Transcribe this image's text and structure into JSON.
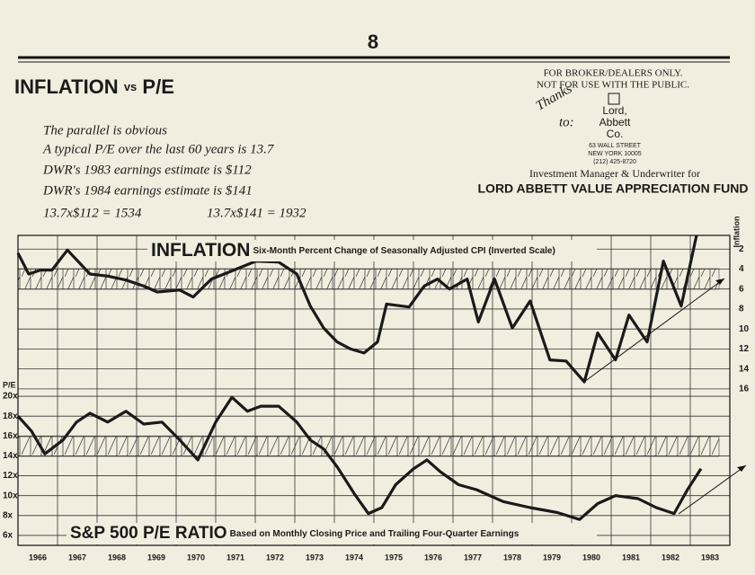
{
  "page_number": "8",
  "heading": {
    "main": "INFLATION",
    "vs": "vs",
    "tail": "P/E"
  },
  "disclaimer": [
    "FOR BROKER/DEALERS ONLY.",
    "NOT FOR USE WITH THE PUBLIC."
  ],
  "thanks": [
    "Thanks",
    "to:"
  ],
  "firm": {
    "name": [
      "Lord,",
      "Abbett",
      "Co."
    ],
    "address": [
      "63 WALL STREET",
      "NEW YORK 10005",
      "(212) 425-8720"
    ],
    "role": "Investment Manager & Underwriter for",
    "fund": "LORD ABBETT VALUE APPRECIATION FUND"
  },
  "notes": [
    "The parallel is obvious",
    "A typical P/E over the last 60 years is 13.7",
    "DWR's 1983 earnings estimate is $112",
    "DWR's 1984 earnings estimate is $141",
    "13.7x$112 = 1534",
    "13.7x$141 = 1932"
  ],
  "chart_data": [
    {
      "type": "line",
      "title": "INFLATION",
      "subtitle": "Six-Month Percent Change of Seasonally Adjusted CPI (Inverted Scale)",
      "y_axis_label": "Inflation",
      "y_axis_side": "right",
      "inverted": true,
      "color": "#1a1a1a",
      "x": [
        1966.0,
        1966.27,
        1966.57,
        1966.86,
        1967.25,
        1967.82,
        1968.27,
        1968.73,
        1969.18,
        1969.52,
        1970.09,
        1970.43,
        1970.89,
        1971.34,
        1972.02,
        1972.59,
        1973.05,
        1973.39,
        1973.73,
        1974.07,
        1974.41,
        1974.75,
        1975.09,
        1975.32,
        1975.89,
        1976.27,
        1976.61,
        1976.91,
        1977.36,
        1977.64,
        1978.05,
        1978.5,
        1978.95,
        1979.45,
        1979.86,
        1980.32,
        1980.66,
        1981.11,
        1981.45,
        1981.91,
        1982.32,
        1982.77,
        1983.16
      ],
      "values": [
        2.4,
        4.5,
        4.1,
        4.1,
        2.1,
        4.5,
        4.7,
        5.1,
        5.7,
        6.3,
        6.1,
        6.8,
        5.0,
        4.3,
        3.2,
        3.3,
        4.5,
        7.7,
        9.9,
        11.3,
        12.0,
        12.4,
        11.3,
        7.5,
        7.8,
        5.7,
        5.0,
        6.0,
        5.0,
        9.3,
        5.0,
        9.9,
        7.2,
        13.1,
        13.2,
        15.3,
        10.4,
        13.1,
        8.6,
        11.3,
        3.2,
        7.7,
        0.6
      ],
      "xlim": [
        1966,
        1984
      ],
      "xticks": [
        1966,
        1967,
        1968,
        1969,
        1970,
        1971,
        1972,
        1973,
        1974,
        1975,
        1976,
        1977,
        1978,
        1979,
        1980,
        1981,
        1982,
        1983
      ],
      "ylim": [
        0,
        17
      ],
      "yticks": [
        2,
        4,
        6,
        8,
        10,
        12,
        14,
        16
      ],
      "grid": true
    },
    {
      "type": "line",
      "title": "S&P 500 P/E RATIO",
      "subtitle": "Based on Monthly Closing Price and Trailing Four-Quarter Earnings",
      "y_axis_label": "P/E",
      "y_axis_side": "left",
      "inverted": false,
      "color": "#1a1a1a",
      "x": [
        1966.0,
        1966.34,
        1966.68,
        1967.14,
        1967.48,
        1967.82,
        1968.27,
        1968.73,
        1969.18,
        1969.64,
        1970.09,
        1970.55,
        1971.0,
        1971.41,
        1971.8,
        1972.14,
        1972.59,
        1973.05,
        1973.39,
        1973.73,
        1974.07,
        1974.52,
        1974.86,
        1975.2,
        1975.55,
        1976.0,
        1976.34,
        1976.68,
        1977.14,
        1977.59,
        1978.27,
        1978.95,
        1979.64,
        1980.2,
        1980.66,
        1981.11,
        1981.68,
        1982.14,
        1982.59,
        1982.93,
        1983.27
      ],
      "values": [
        18.0,
        16.5,
        14.2,
        15.6,
        17.4,
        18.3,
        17.4,
        18.5,
        17.2,
        17.4,
        15.6,
        13.6,
        17.4,
        19.9,
        18.5,
        19.0,
        19.0,
        17.4,
        15.6,
        14.7,
        12.9,
        10.1,
        8.2,
        8.8,
        11.1,
        12.7,
        13.6,
        12.4,
        11.1,
        10.6,
        9.4,
        8.8,
        8.3,
        7.6,
        9.2,
        10.0,
        9.7,
        8.8,
        8.2,
        10.6,
        12.7
      ],
      "xlim": [
        1966,
        1984
      ],
      "xticks": [
        1966,
        1967,
        1968,
        1969,
        1970,
        1971,
        1972,
        1973,
        1974,
        1975,
        1976,
        1977,
        1978,
        1979,
        1980,
        1981,
        1982,
        1983
      ],
      "ylim": [
        5,
        21
      ],
      "yticks": [
        {
          "value": 6,
          "label": "6x"
        },
        {
          "value": 8,
          "label": "8x"
        },
        {
          "value": 10,
          "label": "10x"
        },
        {
          "value": 12,
          "label": "12x"
        },
        {
          "value": 14,
          "label": "14x"
        },
        {
          "value": 16,
          "label": "16x"
        },
        {
          "value": 18,
          "label": "18x"
        },
        {
          "value": 20,
          "label": "20x"
        }
      ],
      "grid": true
    }
  ]
}
